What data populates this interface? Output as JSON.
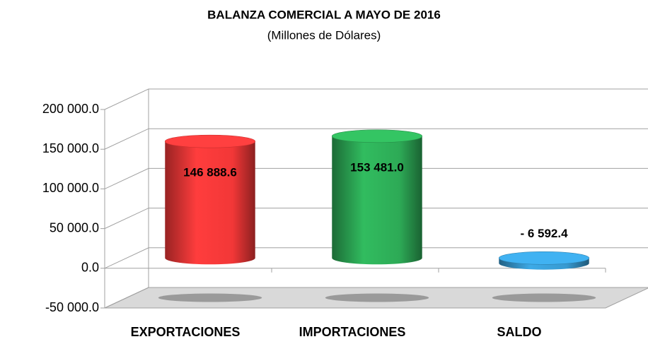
{
  "chart_data": {
    "type": "bar3d",
    "title": "BALANZA COMERCIAL  A MAYO DE 2016",
    "subtitle": "(Millones de Dólares)",
    "categories": [
      "EXPORTACIONES",
      "IMPORTACIONES",
      "SALDO"
    ],
    "values": [
      146888.6,
      153481.0,
      -6592.4
    ],
    "value_labels": [
      "146 888.6",
      "153 481.0",
      "- 6 592.4"
    ],
    "colors": [
      "#ff3a3a",
      "#2fb35a",
      "#3aa2dc"
    ],
    "ylim": [
      -50000,
      200000
    ],
    "yticks": [
      {
        "value": -50000,
        "label": "-50 000.0"
      },
      {
        "value": 0,
        "label": "0.0"
      },
      {
        "value": 50000,
        "label": "50 000.0"
      },
      {
        "value": 100000,
        "label": "100 000.0"
      },
      {
        "value": 150000,
        "label": "150 000.0"
      },
      {
        "value": 200000,
        "label": "200 000.0"
      }
    ],
    "grid": true
  }
}
